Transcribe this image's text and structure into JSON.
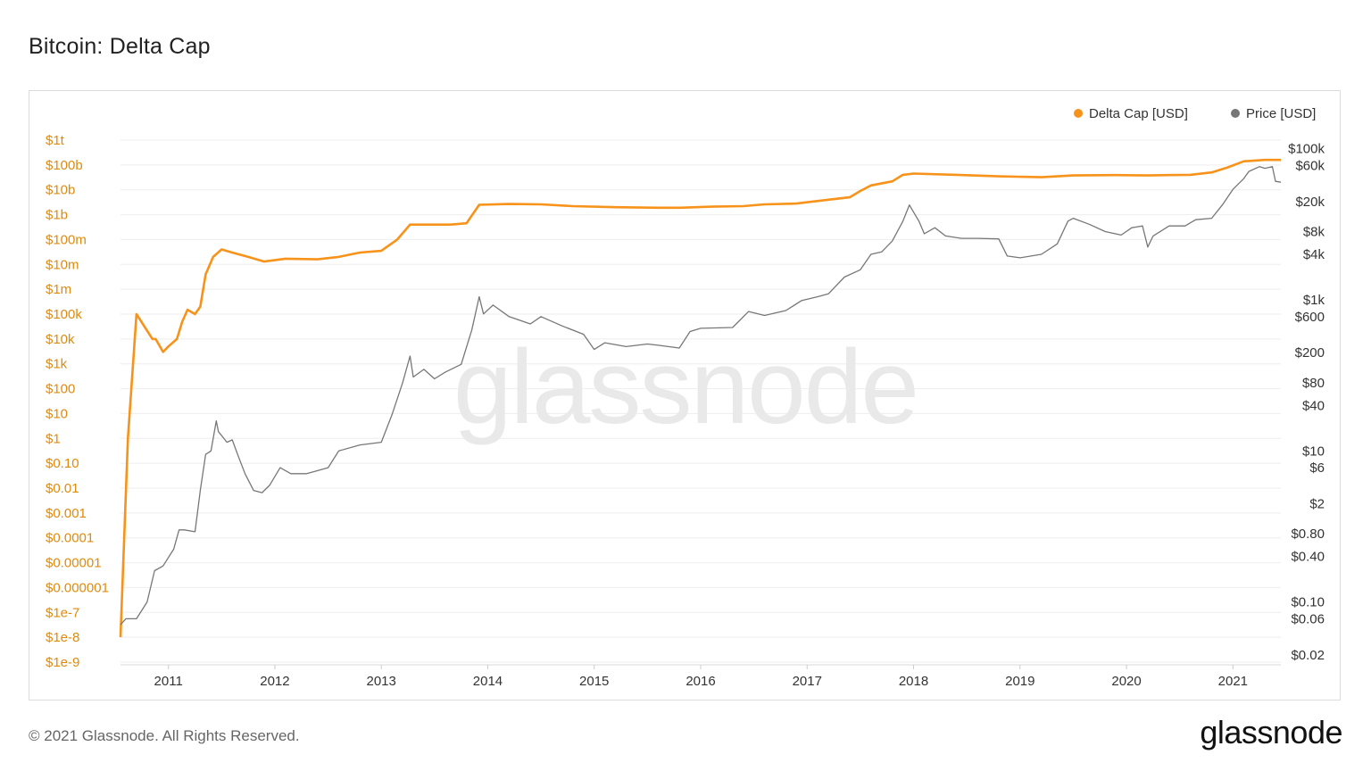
{
  "title": "Bitcoin: Delta Cap",
  "footer": {
    "copyright": "© 2021 Glassnode. All Rights Reserved.",
    "logo_text": "glassnode"
  },
  "colors": {
    "delta_cap": "#f7931a",
    "price": "#777777",
    "left_axis": "#e08a0b",
    "grid": "#eeeeee",
    "watermark": "#e9e9e9"
  },
  "chart_data": {
    "type": "line",
    "title": "Bitcoin: Delta Cap",
    "watermark": "glassnode",
    "legend_position": "top-right",
    "grid": true,
    "legend": [
      {
        "label": "Delta Cap [USD]",
        "color": "#f7931a",
        "icon": "orange-dot"
      },
      {
        "label": "Price [USD]",
        "color": "#777777",
        "icon": "gray-dot"
      }
    ],
    "x_ticks": [
      "2011",
      "2012",
      "2013",
      "2014",
      "2015",
      "2016",
      "2017",
      "2018",
      "2019",
      "2020",
      "2021"
    ],
    "x_range": [
      2010.55,
      2021.45
    ],
    "y_left": {
      "scale": "log",
      "range": [
        1e-09,
        1000000000000.0
      ],
      "tick_labels": [
        "$1t",
        "$100b",
        "$10b",
        "$1b",
        "$100m",
        "$10m",
        "$1m",
        "$100k",
        "$10k",
        "$1k",
        "$100",
        "$10",
        "$1",
        "$0.10",
        "$0.01",
        "$0.001",
        "$0.0001",
        "$0.00001",
        "$0.000001",
        "$1e-7",
        "$1e-8",
        "$1e-9"
      ]
    },
    "y_right": {
      "scale": "log",
      "range": [
        0.016,
        130000
      ],
      "tick_labels": [
        "$100k",
        "$60k",
        "$20k",
        "$8k",
        "$4k",
        "$1k",
        "$600",
        "$200",
        "$80",
        "$40",
        "$10",
        "$6",
        "$2",
        "$0.80",
        "$0.40",
        "$0.10",
        "$0.06",
        "$0.02"
      ],
      "tick_values": [
        100000,
        60000,
        20000,
        8000,
        4000,
        1000,
        600,
        200,
        80,
        40,
        10,
        6,
        2,
        0.8,
        0.4,
        0.1,
        0.06,
        0.02
      ]
    },
    "series": [
      {
        "name": "Delta Cap [USD]",
        "axis": "left",
        "points": [
          [
            2010.55,
            1e-08
          ],
          [
            2010.62,
            1
          ],
          [
            2010.7,
            100000.0
          ],
          [
            2010.85,
            10000.0
          ],
          [
            2010.88,
            10000.0
          ],
          [
            2010.95,
            3000.0
          ],
          [
            2011.0,
            5000.0
          ],
          [
            2011.08,
            10000.0
          ],
          [
            2011.13,
            50000.0
          ],
          [
            2011.18,
            150000.0
          ],
          [
            2011.25,
            100000.0
          ],
          [
            2011.3,
            200000.0
          ],
          [
            2011.35,
            4000000.0
          ],
          [
            2011.42,
            20000000.0
          ],
          [
            2011.5,
            40000000.0
          ],
          [
            2011.6,
            30000000.0
          ],
          [
            2011.75,
            20000000.0
          ],
          [
            2011.9,
            13000000.0
          ],
          [
            2012.1,
            17000000.0
          ],
          [
            2012.4,
            16000000.0
          ],
          [
            2012.6,
            20000000.0
          ],
          [
            2012.8,
            30000000.0
          ],
          [
            2013.0,
            35000000.0
          ],
          [
            2013.15,
            100000000.0
          ],
          [
            2013.27,
            400000000.0
          ],
          [
            2013.5,
            400000000.0
          ],
          [
            2013.65,
            400000000.0
          ],
          [
            2013.8,
            450000000.0
          ],
          [
            2013.92,
            2500000000.0
          ],
          [
            2014.2,
            2700000000.0
          ],
          [
            2014.5,
            2600000000.0
          ],
          [
            2014.8,
            2200000000.0
          ],
          [
            2015.2,
            2000000000.0
          ],
          [
            2015.6,
            1900000000.0
          ],
          [
            2015.8,
            1900000000.0
          ],
          [
            2016.1,
            2100000000.0
          ],
          [
            2016.4,
            2200000000.0
          ],
          [
            2016.6,
            2600000000.0
          ],
          [
            2016.9,
            2800000000.0
          ],
          [
            2017.2,
            4000000000.0
          ],
          [
            2017.4,
            5000000000.0
          ],
          [
            2017.5,
            9000000000.0
          ],
          [
            2017.6,
            15000000000.0
          ],
          [
            2017.8,
            22000000000.0
          ],
          [
            2017.9,
            40000000000.0
          ],
          [
            2018.0,
            45000000000.0
          ],
          [
            2018.4,
            40000000000.0
          ],
          [
            2018.8,
            35000000000.0
          ],
          [
            2019.2,
            32000000000.0
          ],
          [
            2019.5,
            38000000000.0
          ],
          [
            2019.9,
            39000000000.0
          ],
          [
            2020.2,
            38000000000.0
          ],
          [
            2020.4,
            39000000000.0
          ],
          [
            2020.6,
            40000000000.0
          ],
          [
            2020.8,
            50000000000.0
          ],
          [
            2020.95,
            80000000000.0
          ],
          [
            2021.1,
            140000000000.0
          ],
          [
            2021.3,
            160000000000.0
          ],
          [
            2021.45,
            160000000000.0
          ]
        ]
      },
      {
        "name": "Price [USD]",
        "axis": "right",
        "points": [
          [
            2010.55,
            0.05
          ],
          [
            2010.6,
            0.06
          ],
          [
            2010.7,
            0.06
          ],
          [
            2010.8,
            0.1
          ],
          [
            2010.87,
            0.26
          ],
          [
            2010.95,
            0.3
          ],
          [
            2011.05,
            0.5
          ],
          [
            2011.1,
            0.9
          ],
          [
            2011.15,
            0.9
          ],
          [
            2011.25,
            0.85
          ],
          [
            2011.3,
            3
          ],
          [
            2011.35,
            9
          ],
          [
            2011.4,
            10
          ],
          [
            2011.45,
            25
          ],
          [
            2011.47,
            18
          ],
          [
            2011.55,
            13
          ],
          [
            2011.6,
            14
          ],
          [
            2011.65,
            9
          ],
          [
            2011.72,
            5
          ],
          [
            2011.8,
            3
          ],
          [
            2011.88,
            2.8
          ],
          [
            2011.95,
            3.5
          ],
          [
            2012.05,
            6
          ],
          [
            2012.15,
            5
          ],
          [
            2012.3,
            5
          ],
          [
            2012.5,
            6
          ],
          [
            2012.6,
            10
          ],
          [
            2012.8,
            12
          ],
          [
            2013.0,
            13
          ],
          [
            2013.1,
            30
          ],
          [
            2013.2,
            80
          ],
          [
            2013.27,
            180
          ],
          [
            2013.3,
            95
          ],
          [
            2013.4,
            120
          ],
          [
            2013.5,
            90
          ],
          [
            2013.6,
            110
          ],
          [
            2013.75,
            140
          ],
          [
            2013.85,
            400
          ],
          [
            2013.92,
            1100
          ],
          [
            2013.96,
            650
          ],
          [
            2014.05,
            850
          ],
          [
            2014.2,
            600
          ],
          [
            2014.4,
            480
          ],
          [
            2014.5,
            600
          ],
          [
            2014.7,
            450
          ],
          [
            2014.9,
            350
          ],
          [
            2015.0,
            220
          ],
          [
            2015.1,
            270
          ],
          [
            2015.3,
            240
          ],
          [
            2015.5,
            260
          ],
          [
            2015.6,
            250
          ],
          [
            2015.8,
            230
          ],
          [
            2015.9,
            380
          ],
          [
            2016.0,
            420
          ],
          [
            2016.3,
            430
          ],
          [
            2016.45,
            700
          ],
          [
            2016.6,
            620
          ],
          [
            2016.8,
            720
          ],
          [
            2016.95,
            980
          ],
          [
            2017.1,
            1100
          ],
          [
            2017.2,
            1200
          ],
          [
            2017.35,
            2000
          ],
          [
            2017.5,
            2500
          ],
          [
            2017.6,
            4000
          ],
          [
            2017.7,
            4300
          ],
          [
            2017.8,
            6000
          ],
          [
            2017.9,
            11000
          ],
          [
            2017.96,
            18000
          ],
          [
            2018.05,
            11000
          ],
          [
            2018.1,
            7500
          ],
          [
            2018.2,
            9000
          ],
          [
            2018.3,
            7000
          ],
          [
            2018.45,
            6500
          ],
          [
            2018.6,
            6500
          ],
          [
            2018.8,
            6400
          ],
          [
            2018.88,
            3800
          ],
          [
            2019.0,
            3600
          ],
          [
            2019.2,
            4000
          ],
          [
            2019.35,
            5500
          ],
          [
            2019.45,
            11000
          ],
          [
            2019.5,
            12000
          ],
          [
            2019.65,
            10000
          ],
          [
            2019.8,
            8000
          ],
          [
            2019.95,
            7200
          ],
          [
            2020.05,
            9000
          ],
          [
            2020.15,
            9500
          ],
          [
            2020.2,
            5000
          ],
          [
            2020.25,
            7000
          ],
          [
            2020.4,
            9500
          ],
          [
            2020.55,
            9500
          ],
          [
            2020.65,
            11500
          ],
          [
            2020.8,
            12000
          ],
          [
            2020.9,
            18000
          ],
          [
            2021.0,
            29000
          ],
          [
            2021.1,
            40000
          ],
          [
            2021.15,
            50000
          ],
          [
            2021.25,
            58000
          ],
          [
            2021.3,
            55000
          ],
          [
            2021.37,
            58000
          ],
          [
            2021.4,
            37000
          ],
          [
            2021.45,
            36000
          ]
        ]
      }
    ]
  }
}
